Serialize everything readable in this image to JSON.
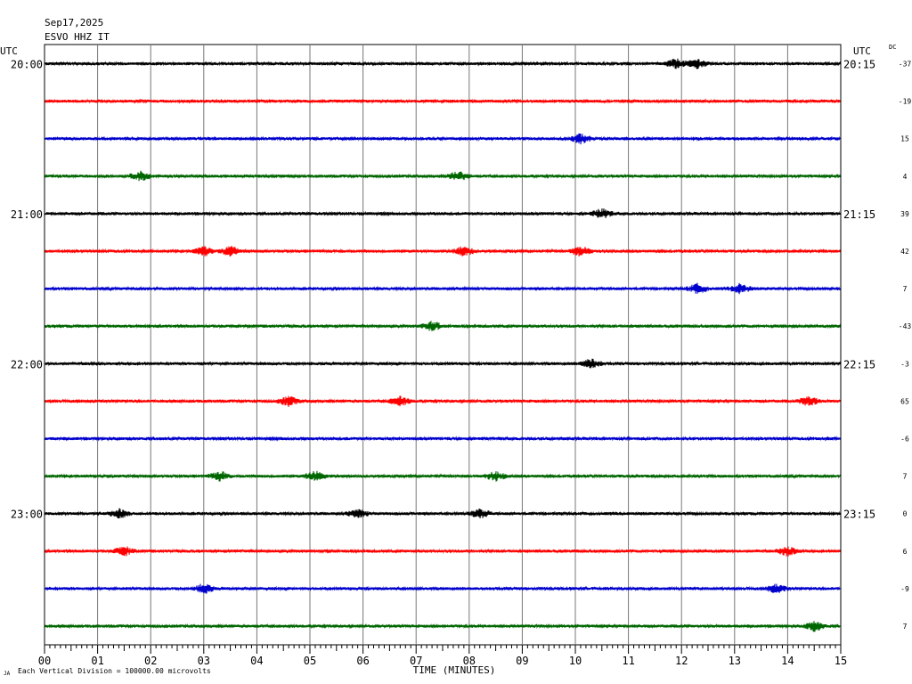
{
  "header": {
    "date": "Sep17,2025",
    "station": "ESVO HHZ IT"
  },
  "labels": {
    "left_utc": "UTC",
    "right_utc": "UTC",
    "dc": "DC",
    "xlabel": "TIME (MINUTES)",
    "scale_note": "Each Vertical Division = 100000.00 microvolts",
    "corner_mark": "JA"
  },
  "chart_data": {
    "type": "line",
    "title": "",
    "xlabel": "TIME (MINUTES)",
    "xlim": [
      0,
      15
    ],
    "x_ticks": [
      "00",
      "01",
      "02",
      "03",
      "04",
      "05",
      "06",
      "07",
      "08",
      "09",
      "10",
      "11",
      "12",
      "13",
      "14",
      "15"
    ],
    "colors": [
      "#000000",
      "#ff0000",
      "#0000cc",
      "#006600"
    ],
    "left_time_labels": [
      "20:00",
      "21:00",
      "22:00",
      "23:00"
    ],
    "right_time_labels": [
      "20:15",
      "21:15",
      "22:15",
      "23:15"
    ],
    "dc_offsets": [
      "-37",
      "-19",
      "15",
      "4",
      "39",
      "42",
      "7",
      "-43",
      "-3",
      "65",
      "-6",
      "7",
      "0",
      "6",
      "-9",
      "7"
    ],
    "traces": [
      {
        "start": "20:00",
        "color": "#000000",
        "events": [
          11.9,
          12.3
        ]
      },
      {
        "start": "20:15",
        "color": "#ff0000",
        "events": []
      },
      {
        "start": "20:30",
        "color": "#0000cc",
        "events": [
          10.1
        ]
      },
      {
        "start": "20:45",
        "color": "#006600",
        "events": [
          1.8,
          7.8
        ]
      },
      {
        "start": "21:00",
        "color": "#000000",
        "events": [
          10.5
        ]
      },
      {
        "start": "21:15",
        "color": "#ff0000",
        "events": [
          3.0,
          3.5,
          7.9,
          10.1
        ]
      },
      {
        "start": "21:30",
        "color": "#0000cc",
        "events": [
          12.3,
          13.1
        ]
      },
      {
        "start": "21:45",
        "color": "#006600",
        "events": [
          7.3
        ]
      },
      {
        "start": "22:00",
        "color": "#000000",
        "events": [
          10.3
        ]
      },
      {
        "start": "22:15",
        "color": "#ff0000",
        "events": [
          4.6,
          6.7,
          14.4
        ]
      },
      {
        "start": "22:30",
        "color": "#0000cc",
        "events": []
      },
      {
        "start": "22:45",
        "color": "#006600",
        "events": [
          3.3,
          5.1,
          8.5
        ]
      },
      {
        "start": "23:00",
        "color": "#000000",
        "events": [
          1.4,
          5.9,
          8.2
        ]
      },
      {
        "start": "23:15",
        "color": "#ff0000",
        "events": [
          1.5,
          14.0
        ]
      },
      {
        "start": "23:30",
        "color": "#0000cc",
        "events": [
          3.0,
          13.8
        ]
      },
      {
        "start": "23:45",
        "color": "#006600",
        "events": [
          14.5
        ]
      }
    ]
  }
}
